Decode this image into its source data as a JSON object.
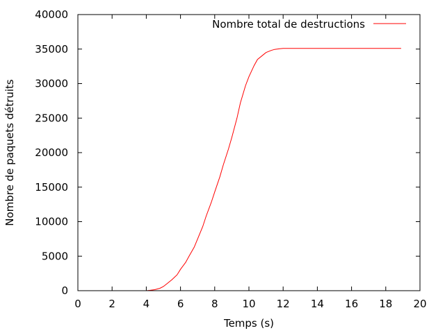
{
  "chart_data": {
    "type": "line",
    "xlabel": "Temps (s)",
    "ylabel": "Nombre de paquets détruits",
    "xlim": [
      0,
      20
    ],
    "ylim": [
      0,
      40000
    ],
    "xticks": [
      0,
      2,
      4,
      6,
      8,
      10,
      12,
      14,
      16,
      18,
      20
    ],
    "yticks": [
      0,
      5000,
      10000,
      15000,
      20000,
      25000,
      30000,
      35000,
      40000
    ],
    "grid": false,
    "legend_position": "top-right",
    "series": [
      {
        "name": "Nombre total de destructions",
        "color": "#ff0000",
        "x": [
          4.0,
          4.2,
          4.5,
          4.8,
          5.0,
          5.2,
          5.5,
          5.8,
          6.0,
          6.3,
          6.5,
          6.8,
          7.0,
          7.3,
          7.5,
          7.8,
          8.0,
          8.3,
          8.5,
          8.8,
          9.0,
          9.3,
          9.5,
          9.8,
          10.0,
          10.3,
          10.5,
          10.8,
          11.0,
          11.3,
          11.5,
          11.8,
          12.0,
          12.5,
          13.0,
          14.0,
          15.0,
          16.0,
          17.0,
          18.0,
          18.9
        ],
        "y": [
          0,
          50,
          150,
          350,
          600,
          1000,
          1600,
          2300,
          3100,
          4100,
          5000,
          6300,
          7500,
          9300,
          10800,
          12800,
          14300,
          16500,
          18200,
          20500,
          22200,
          25000,
          27200,
          29700,
          31000,
          32600,
          33500,
          34100,
          34500,
          34800,
          34950,
          35050,
          35100,
          35100,
          35100,
          35100,
          35100,
          35100,
          35100,
          35100,
          35100
        ]
      }
    ]
  }
}
